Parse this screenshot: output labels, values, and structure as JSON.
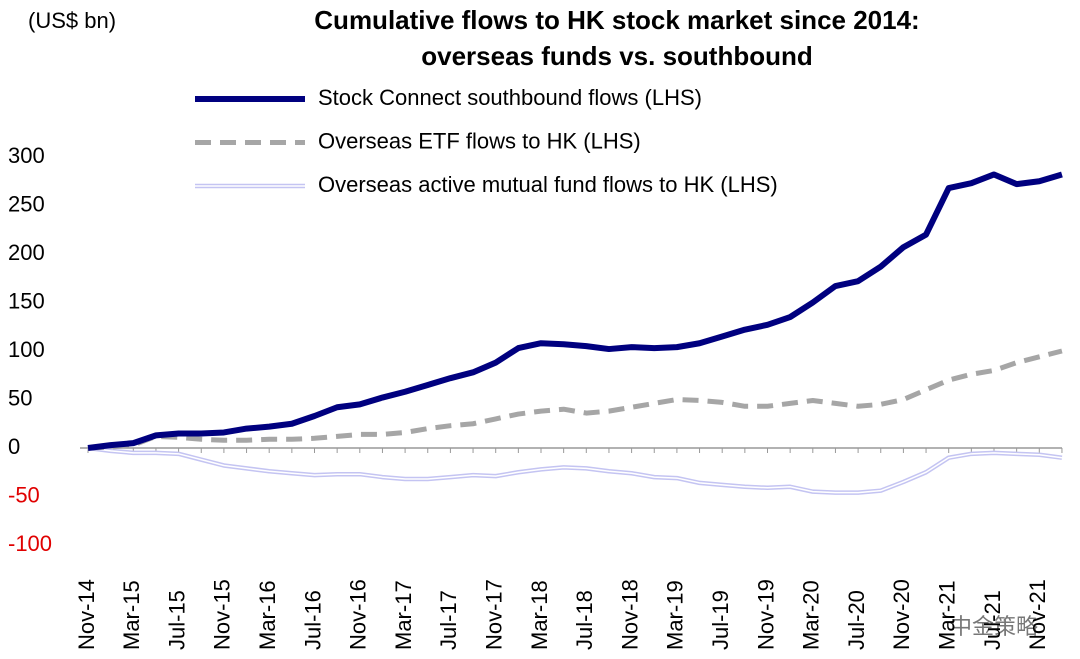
{
  "chart_data": {
    "type": "line",
    "title": [
      "Cumulative flows to HK stock market since 2014:",
      "overseas funds vs. southbound"
    ],
    "y_label": "(US$ bn)",
    "watermark": "中金策略",
    "categories": [
      "Nov-14",
      null,
      "Mar-15",
      null,
      "Jul-15",
      null,
      "Nov-15",
      null,
      "Mar-16",
      null,
      "Jul-16",
      null,
      "Nov-16",
      null,
      "Mar-17",
      null,
      "Jul-17",
      null,
      "Nov-17",
      null,
      "Mar-18",
      null,
      "Jul-18",
      null,
      "Nov-18",
      null,
      "Mar-19",
      null,
      "Jul-19",
      null,
      "Nov-19",
      null,
      "Mar-20",
      null,
      "Jul-20",
      null,
      "Nov-20",
      null,
      "Mar-21",
      null,
      "Jul-21",
      null,
      "Nov-21",
      null
    ],
    "series": [
      {
        "name": "Stock Connect southbound flows (LHS)",
        "color": "#00007f",
        "style": "solid",
        "values": [
          0,
          3,
          5,
          13,
          15,
          15,
          16,
          20,
          22,
          25,
          33,
          42,
          45,
          52,
          58,
          65,
          72,
          78,
          88,
          103,
          108,
          107,
          105,
          102,
          104,
          103,
          104,
          108,
          115,
          122,
          127,
          135,
          150,
          167,
          172,
          187,
          207,
          220,
          268,
          273,
          282,
          272,
          275,
          282
        ]
      },
      {
        "name": "Overseas ETF flows to HK (LHS)",
        "color": "#a6a6a6",
        "style": "dashed",
        "values": [
          0,
          1,
          3,
          12,
          11,
          9,
          8,
          8,
          9,
          9,
          10,
          12,
          14,
          14,
          16,
          20,
          23,
          25,
          30,
          35,
          38,
          40,
          36,
          38,
          42,
          46,
          50,
          49,
          47,
          43,
          43,
          46,
          49,
          46,
          43,
          45,
          50,
          60,
          70,
          76,
          80,
          88,
          94,
          100
        ]
      },
      {
        "name": "Overseas active mutual fund flows to HK (LHS)",
        "color": "#c4c4f2",
        "style": "double",
        "values": [
          0,
          -3,
          -5,
          -5,
          -6,
          -12,
          -18,
          -21,
          -24,
          -26,
          -28,
          -27,
          -27,
          -30,
          -32,
          -32,
          -30,
          -28,
          -29,
          -25,
          -22,
          -20,
          -21,
          -24,
          -26,
          -30,
          -31,
          -36,
          -38,
          -40,
          -41,
          -40,
          -45,
          -46,
          -46,
          -44,
          -35,
          -25,
          -10,
          -6,
          -5,
          -6,
          -7,
          -10
        ]
      }
    ],
    "ylim": [
      -100,
      300
    ],
    "yticks": [
      -100,
      -50,
      0,
      50,
      100,
      150,
      200,
      250,
      300
    ],
    "negative_tick_color": "#e00000",
    "grid": false
  }
}
